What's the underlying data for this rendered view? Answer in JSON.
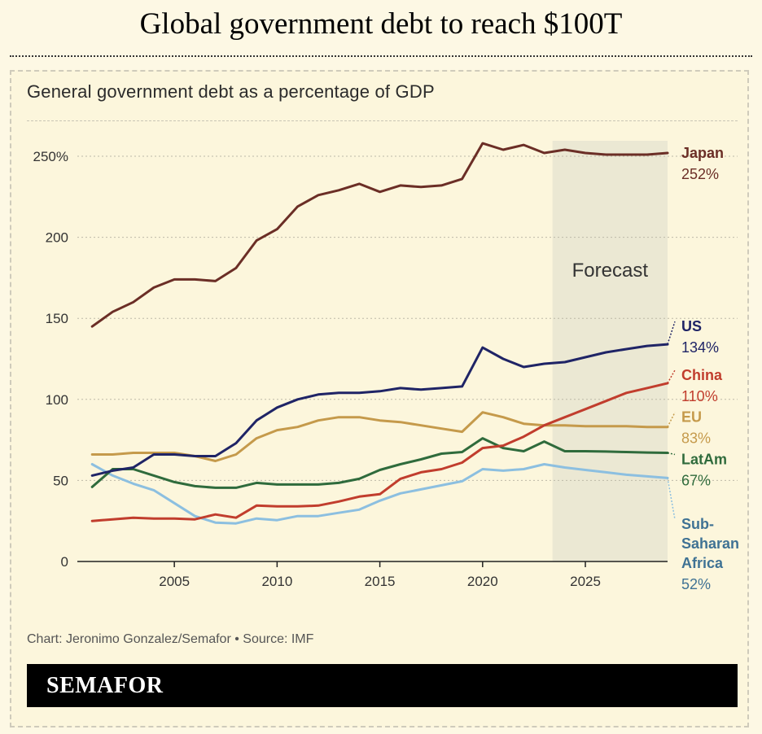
{
  "header": {
    "title": "Global government debt to reach $100T"
  },
  "footer": {
    "credit": "Chart: Jeronimo Gonzalez/Semafor • Source: IMF",
    "brand": "SEMAFOR"
  },
  "chart_data": {
    "type": "line",
    "title": "General government debt as a percentage of GDP",
    "xlabel": "",
    "ylabel": "",
    "xlim": [
      2001,
      2029
    ],
    "ylim": [
      0,
      260
    ],
    "x_ticks": [
      2005,
      2010,
      2015,
      2020,
      2025
    ],
    "y_ticks": [
      0,
      50,
      100,
      150,
      200,
      250
    ],
    "y_tick_labels": [
      "0",
      "50",
      "100",
      "150",
      "200",
      "250%"
    ],
    "grid": {
      "horizontal": true,
      "vertical": false
    },
    "legend": "direct-labels-right",
    "forecast": {
      "label": "Forecast",
      "start": 2023.4,
      "end": 2029,
      "color": "#ebe8d3"
    },
    "x": [
      2001,
      2002,
      2003,
      2004,
      2005,
      2006,
      2007,
      2008,
      2009,
      2010,
      2011,
      2012,
      2013,
      2014,
      2015,
      2016,
      2017,
      2018,
      2019,
      2020,
      2021,
      2022,
      2023,
      2024,
      2025,
      2026,
      2027,
      2028,
      2029
    ],
    "series": [
      {
        "name": "Japan",
        "value_label": "252%",
        "color": "#6b2e26",
        "label_y": 252,
        "leader": false,
        "values": [
          145,
          154,
          160,
          169,
          174,
          174,
          173,
          181,
          198,
          205,
          219,
          226,
          229,
          233,
          228,
          232,
          231,
          232,
          236,
          258,
          254,
          257,
          252,
          254,
          252,
          251,
          251,
          251,
          252
        ]
      },
      {
        "name": "US",
        "value_label": "134%",
        "color": "#1f2466",
        "label_y": 145,
        "leader": true,
        "values": [
          53,
          56,
          58,
          66,
          66,
          65,
          65,
          73,
          87,
          95,
          100,
          103,
          104,
          104,
          105,
          107,
          106,
          107,
          108,
          132,
          125,
          120,
          122,
          123,
          126,
          129,
          131,
          133,
          134
        ]
      },
      {
        "name": "China",
        "value_label": "110%",
        "color": "#c13d2d",
        "label_y": 115,
        "leader": true,
        "values": [
          25,
          26,
          27,
          26.5,
          26.5,
          26,
          29,
          27,
          34.5,
          34,
          34,
          34.5,
          37,
          40,
          41.5,
          51,
          55,
          57,
          61,
          70,
          71.5,
          77,
          84,
          89,
          94,
          99,
          104,
          107,
          110
        ]
      },
      {
        "name": "EU",
        "value_label": "83%",
        "color": "#c59a4b",
        "label_y": 89,
        "leader": true,
        "values": [
          66,
          66,
          67,
          67,
          67,
          65,
          62,
          66,
          76,
          81,
          83,
          87,
          89,
          89,
          87,
          86,
          84,
          82,
          80,
          92,
          89,
          85,
          84,
          84,
          83.5,
          83.5,
          83.5,
          83,
          83
        ]
      },
      {
        "name": "LatAm",
        "value_label": "67%",
        "color": "#2f6b3c",
        "label_y": 63,
        "leader": true,
        "values": [
          46,
          57,
          57,
          53,
          49,
          46.5,
          45.5,
          45.5,
          48.5,
          47.5,
          47.5,
          47.5,
          48.5,
          51,
          56.5,
          60,
          63,
          66.5,
          67.5,
          76,
          70,
          68,
          74,
          68,
          68,
          67.8,
          67.5,
          67.2,
          67
        ]
      },
      {
        "name": "Sub-Saharan Africa",
        "name_lines": [
          "Sub-",
          "Saharan",
          "Africa"
        ],
        "value_label": "52%",
        "color": "#8cbfe0",
        "label_color": "#3f7294",
        "label_y": 23,
        "leader": true,
        "values": [
          60,
          53,
          48,
          44,
          36,
          28,
          24,
          23.5,
          26.5,
          25.5,
          28,
          28,
          30,
          32,
          37.5,
          42,
          44.5,
          47,
          49.5,
          57,
          56,
          57,
          60,
          58,
          56.5,
          55,
          53.5,
          52.5,
          51.5
        ]
      }
    ]
  }
}
